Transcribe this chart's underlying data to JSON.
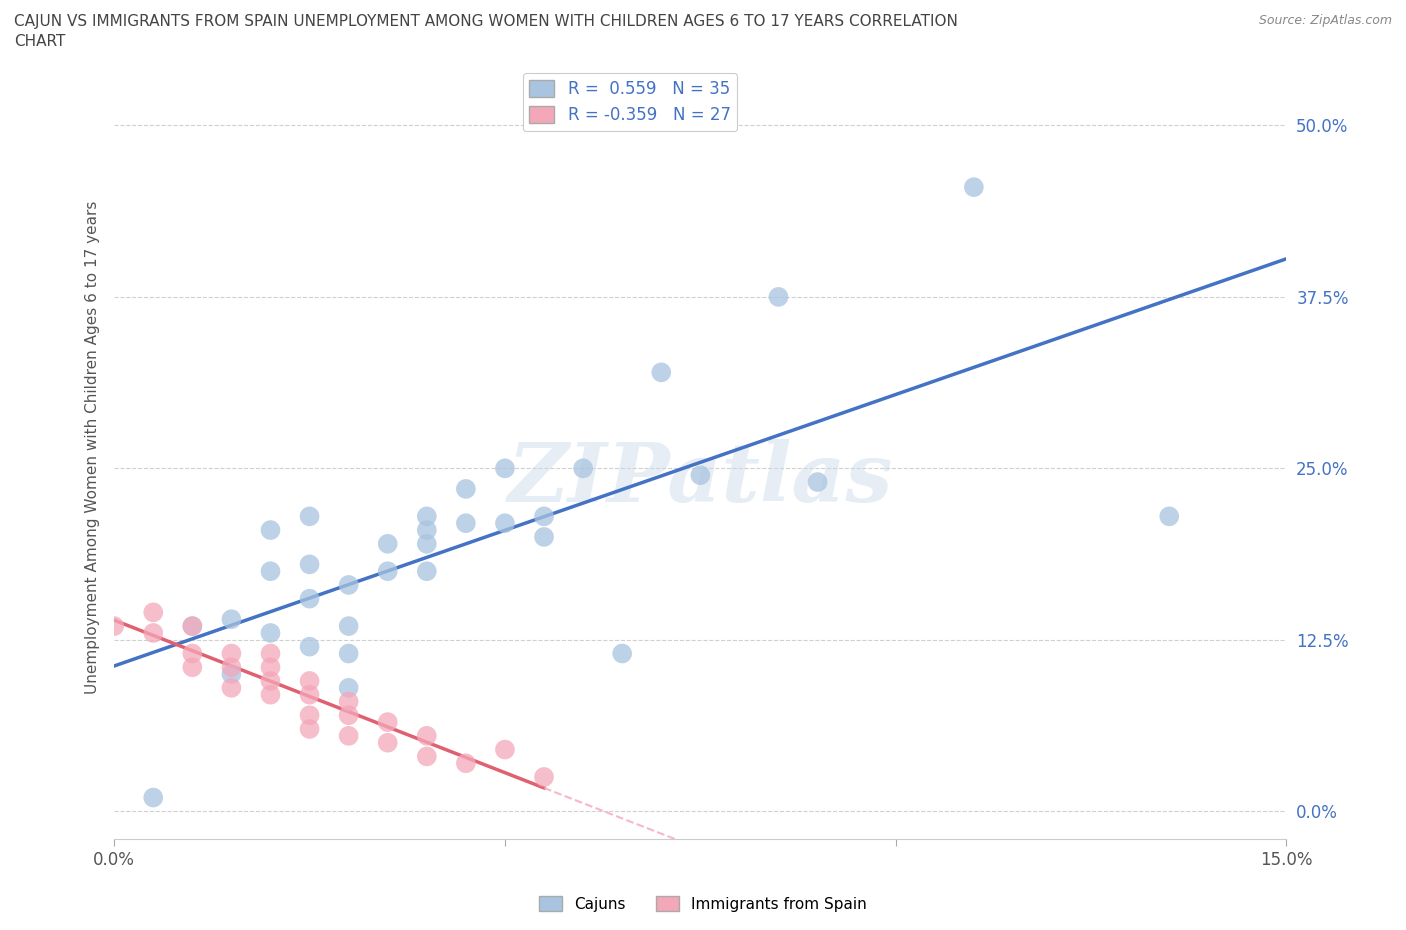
{
  "title_line1": "CAJUN VS IMMIGRANTS FROM SPAIN UNEMPLOYMENT AMONG WOMEN WITH CHILDREN AGES 6 TO 17 YEARS CORRELATION",
  "title_line2": "CHART",
  "source": "Source: ZipAtlas.com",
  "ylabel": "Unemployment Among Women with Children Ages 6 to 17 years",
  "xlim": [
    0.0,
    0.15
  ],
  "ylim": [
    -0.02,
    0.55
  ],
  "xticks": [
    0.0,
    0.05,
    0.1,
    0.15
  ],
  "xtick_labels": [
    "0.0%",
    "",
    "",
    "15.0%"
  ],
  "ytick_labels": [
    "0.0%",
    "12.5%",
    "25.0%",
    "37.5%",
    "50.0%"
  ],
  "yticks": [
    0.0,
    0.125,
    0.25,
    0.375,
    0.5
  ],
  "cajun_R": 0.559,
  "cajun_N": 35,
  "spain_R": -0.359,
  "spain_N": 27,
  "cajun_color": "#a8c4e0",
  "spain_color": "#f4a7b9",
  "cajun_line_color": "#4472c4",
  "spain_line_solid_color": "#e06070",
  "spain_line_dash_color": "#f4a7b9",
  "watermark_text": "ZIPatlas",
  "background_color": "#ffffff",
  "grid_color": "#d0d0d0",
  "cajun_x": [
    0.005,
    0.01,
    0.015,
    0.015,
    0.02,
    0.02,
    0.02,
    0.025,
    0.025,
    0.025,
    0.025,
    0.03,
    0.03,
    0.03,
    0.03,
    0.035,
    0.035,
    0.04,
    0.04,
    0.04,
    0.04,
    0.045,
    0.045,
    0.05,
    0.05,
    0.055,
    0.055,
    0.06,
    0.065,
    0.07,
    0.075,
    0.085,
    0.09,
    0.11,
    0.135
  ],
  "cajun_y": [
    0.01,
    0.135,
    0.14,
    0.1,
    0.13,
    0.175,
    0.205,
    0.12,
    0.155,
    0.18,
    0.215,
    0.09,
    0.115,
    0.135,
    0.165,
    0.175,
    0.195,
    0.175,
    0.195,
    0.215,
    0.205,
    0.21,
    0.235,
    0.21,
    0.25,
    0.2,
    0.215,
    0.25,
    0.115,
    0.32,
    0.245,
    0.375,
    0.24,
    0.455,
    0.215
  ],
  "spain_x": [
    0.0,
    0.005,
    0.005,
    0.01,
    0.01,
    0.01,
    0.015,
    0.015,
    0.015,
    0.02,
    0.02,
    0.02,
    0.02,
    0.025,
    0.025,
    0.025,
    0.025,
    0.03,
    0.03,
    0.03,
    0.035,
    0.035,
    0.04,
    0.04,
    0.045,
    0.05,
    0.055
  ],
  "spain_y": [
    0.135,
    0.13,
    0.145,
    0.105,
    0.115,
    0.135,
    0.09,
    0.105,
    0.115,
    0.085,
    0.095,
    0.105,
    0.115,
    0.06,
    0.07,
    0.085,
    0.095,
    0.055,
    0.07,
    0.08,
    0.05,
    0.065,
    0.04,
    0.055,
    0.035,
    0.045,
    0.025
  ]
}
